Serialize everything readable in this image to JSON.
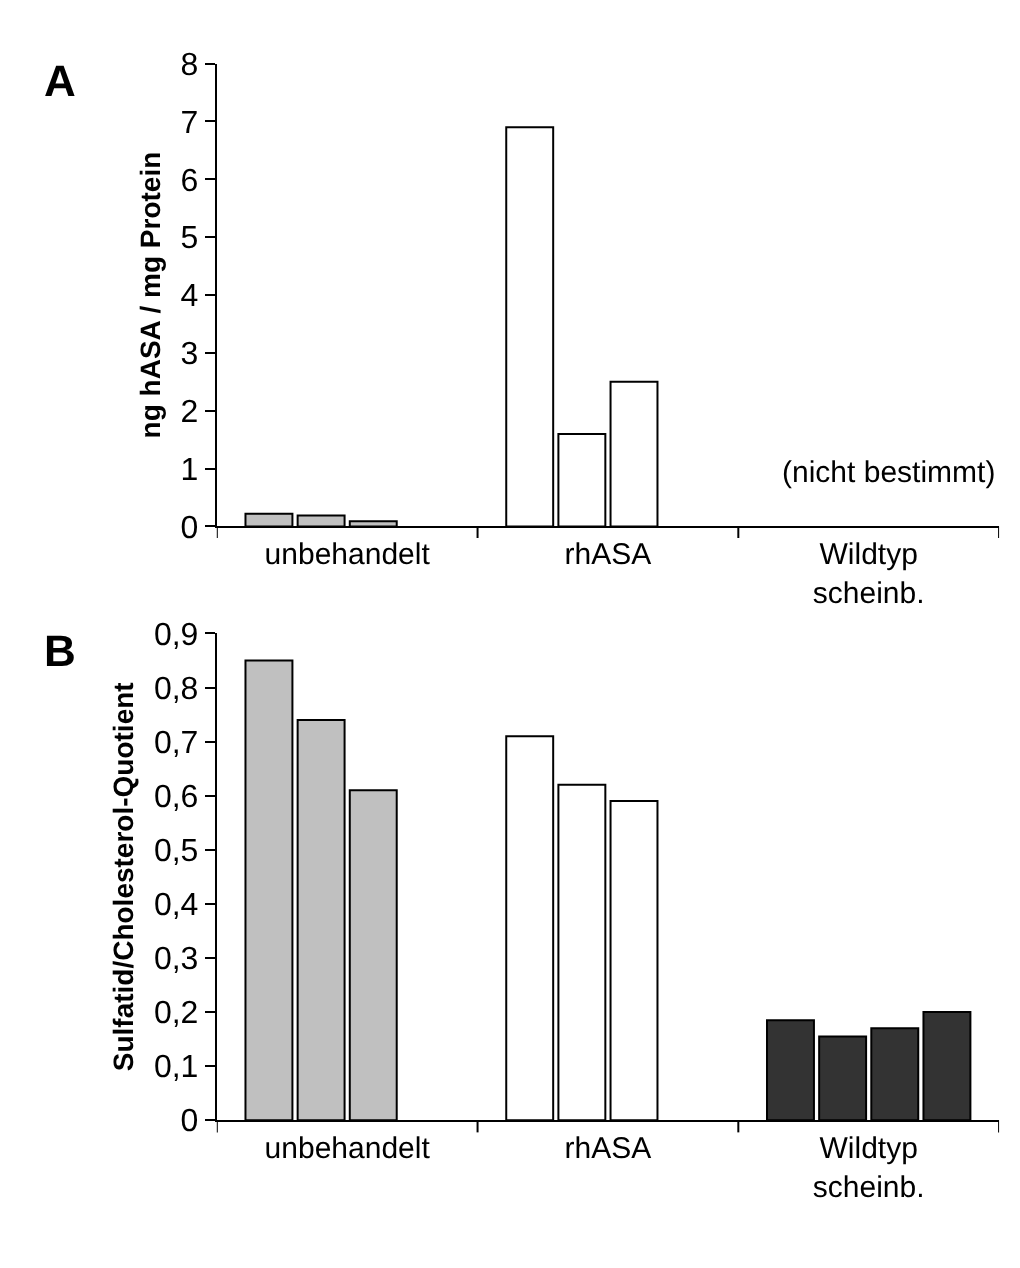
{
  "chart_data": [
    {
      "type": "bar",
      "title": "A",
      "ylabel": "ng hASA / mg Protein",
      "categories": [
        "unbehandelt",
        "rhASA",
        "Wildtyp scheinb."
      ],
      "series": [
        {
          "colors": [
            "#c0c0c0",
            "#ffffff",
            "#ffffff"
          ],
          "values": [
            0.22,
            6.9,
            null
          ]
        },
        {
          "colors": [
            "#c0c0c0",
            "#ffffff",
            "#ffffff"
          ],
          "values": [
            0.19,
            1.6,
            null
          ]
        },
        {
          "colors": [
            "#c0c0c0",
            "#ffffff",
            "#ffffff"
          ],
          "values": [
            0.09,
            2.5,
            null
          ]
        },
        {
          "colors": [
            "#c0c0c0",
            "#ffffff",
            "#ffffff"
          ],
          "values": [
            null,
            null,
            null
          ]
        }
      ],
      "ylim": [
        0,
        8
      ],
      "yticks": [
        0,
        1,
        2,
        3,
        4,
        5,
        6,
        7,
        8
      ],
      "annotations": [
        "(nicht bestimmt)"
      ]
    },
    {
      "type": "bar",
      "title": "B",
      "ylabel": "Sulfatid/Cholesterol-Quotient",
      "categories": [
        "unbehandelt",
        "rhASA",
        "Wildtyp scheinb."
      ],
      "series": [
        {
          "colors": [
            "#c0c0c0",
            "#ffffff",
            "#333333"
          ],
          "values": [
            0.85,
            0.71,
            0.185
          ]
        },
        {
          "colors": [
            "#c0c0c0",
            "#ffffff",
            "#333333"
          ],
          "values": [
            0.74,
            0.62,
            0.155
          ]
        },
        {
          "colors": [
            "#c0c0c0",
            "#ffffff",
            "#333333"
          ],
          "values": [
            0.61,
            0.59,
            0.17
          ]
        },
        {
          "colors": [
            "#c0c0c0",
            "#ffffff",
            "#333333"
          ],
          "values": [
            null,
            null,
            0.2
          ]
        }
      ],
      "ylim": [
        0,
        0.9
      ],
      "yticks": [
        0,
        {
          "value": 0.1,
          "label": "0,1"
        },
        {
          "value": 0.2,
          "label": "0,2"
        },
        {
          "value": 0.3,
          "label": "0,3"
        },
        {
          "value": 0.4,
          "label": "0,4"
        },
        {
          "value": 0.5,
          "label": "0,5"
        },
        {
          "value": 0.6,
          "label": "0,6"
        },
        {
          "value": 0.7,
          "label": "0,7"
        },
        {
          "value": 0.8,
          "label": "0,8"
        },
        {
          "value": 0.9,
          "label": "0,9"
        }
      ]
    }
  ]
}
